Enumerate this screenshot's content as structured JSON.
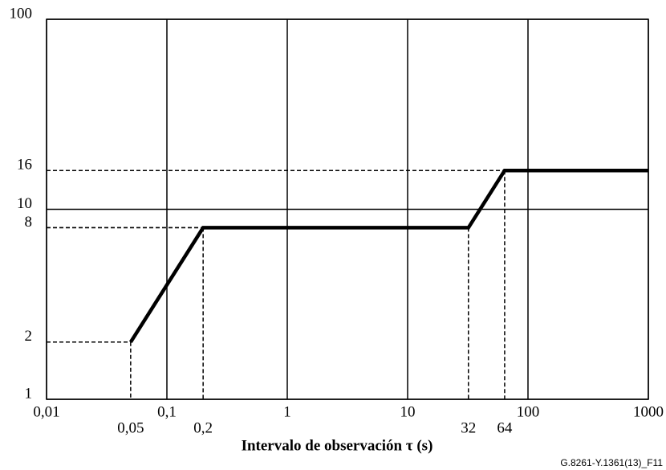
{
  "chart_data": {
    "type": "line",
    "x_label": "Intervalo de observación  τ (s)",
    "figure_id": "G.8261-Y.1361(13)_F11",
    "xlog": true,
    "ylog": true,
    "xlim": [
      0.01,
      1000
    ],
    "ylim": [
      1,
      100
    ],
    "xticks": [
      {
        "value": 0.01,
        "label": "0,01"
      },
      {
        "value": 0.1,
        "label": "0,1"
      },
      1,
      10,
      100,
      1000
    ],
    "yticks": [
      1,
      2,
      8,
      10,
      16,
      100
    ],
    "grid": true,
    "x": [
      0.05,
      0.2,
      32,
      64,
      1000
    ],
    "x_value_labels": [
      "0,05",
      "0,2",
      "32",
      "64",
      null
    ],
    "series": [
      {
        "color": "#000000",
        "values": [
          2,
          8,
          8,
          16,
          16
        ]
      }
    ]
  }
}
